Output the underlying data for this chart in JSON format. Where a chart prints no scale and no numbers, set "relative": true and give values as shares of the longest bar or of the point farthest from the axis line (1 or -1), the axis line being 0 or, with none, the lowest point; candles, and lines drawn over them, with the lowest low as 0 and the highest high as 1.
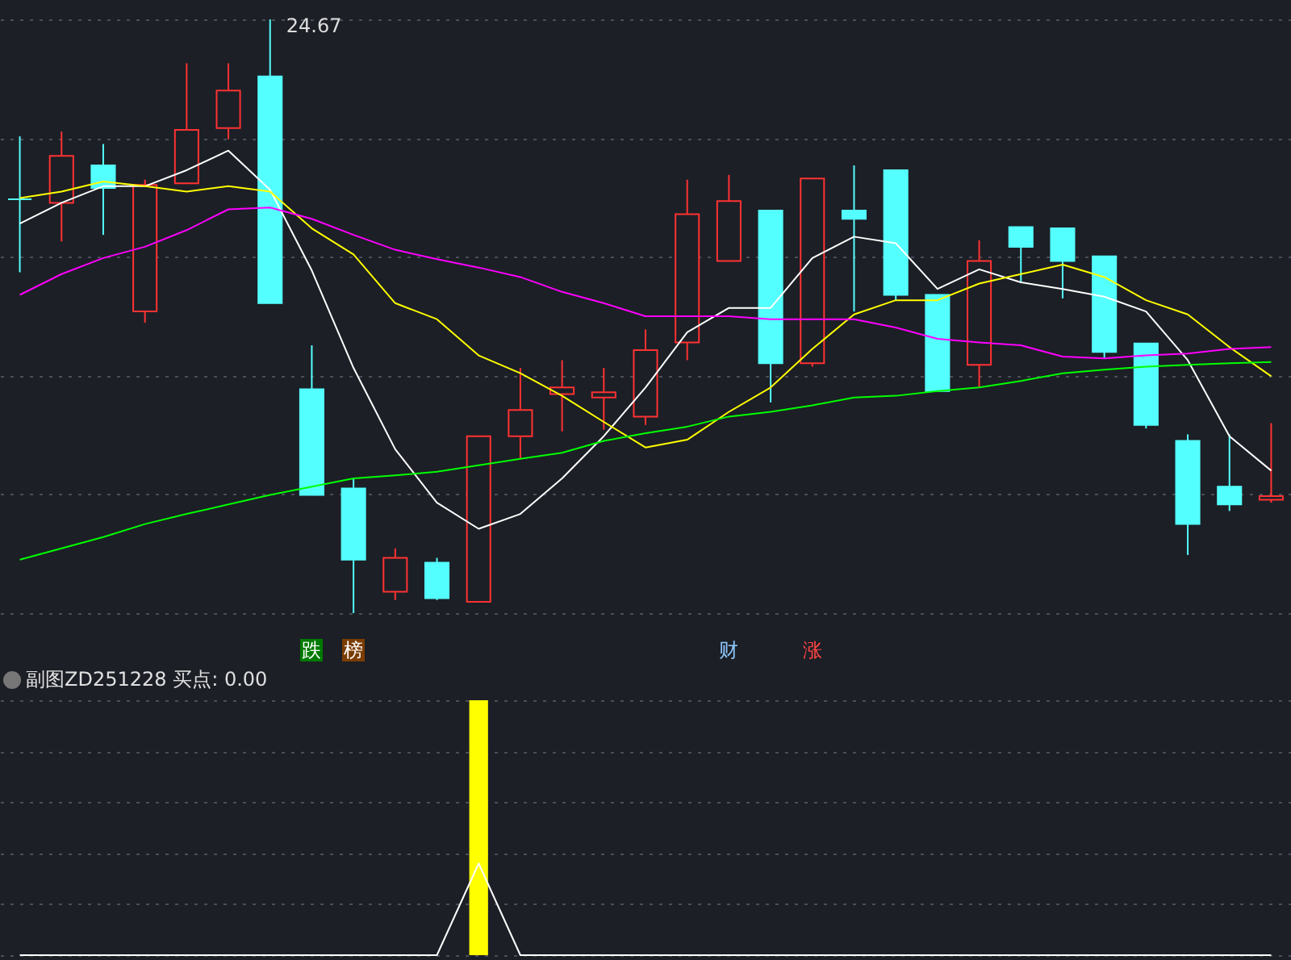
{
  "chart_data": [
    {
      "type": "candlestick",
      "relative": true,
      "grid": true,
      "categories": [
        null,
        null,
        null,
        null,
        null,
        null,
        null,
        null,
        null,
        null,
        null,
        null,
        null,
        null,
        null,
        null,
        null,
        null,
        null,
        null,
        null,
        null,
        null,
        null,
        null,
        null,
        null,
        null,
        null,
        null,
        null
      ],
      "ohlc": [
        [
          0.697,
          0.803,
          0.574,
          0.697
        ],
        [
          0.691,
          0.811,
          0.626,
          0.77
        ],
        [
          0.754,
          0.79,
          0.637,
          0.716
        ],
        [
          0.508,
          0.73,
          0.489,
          0.721
        ],
        [
          0.724,
          0.926,
          0.724,
          0.814
        ],
        [
          0.817,
          0.926,
          0.798,
          0.88
        ],
        [
          0.904,
          1.0,
          0.522,
          0.522
        ],
        [
          0.377,
          0.451,
          0.199,
          0.199
        ],
        [
          0.21,
          0.227,
          0,
          0.09
        ],
        [
          0.036,
          0.109,
          0.022,
          0.093
        ],
        [
          0.085,
          0.093,
          0.022,
          0.025
        ],
        [
          0.019,
          0.298,
          0.019,
          0.298
        ],
        [
          0.298,
          0.413,
          0.26,
          0.342
        ],
        [
          0.369,
          0.426,
          0.306,
          0.38
        ],
        [
          0.363,
          0.413,
          0.309,
          0.372
        ],
        [
          0.331,
          0.478,
          0.317,
          0.443
        ],
        [
          0.456,
          0.73,
          0.426,
          0.672
        ],
        [
          0.593,
          0.738,
          0.593,
          0.694
        ],
        [
          0.678,
          0.678,
          0.355,
          0.421
        ],
        [
          0.421,
          0.732,
          0.415,
          0.732
        ],
        [
          0.678,
          0.754,
          0.508,
          0.664
        ],
        [
          0.746,
          0.746,
          0.527,
          0.536
        ],
        [
          0.536,
          0.536,
          0.374,
          0.374
        ],
        [
          0.418,
          0.628,
          0.38,
          0.593
        ],
        [
          0.65,
          0.65,
          0.557,
          0.617
        ],
        [
          0.648,
          0.648,
          0.53,
          0.593
        ],
        [
          0.601,
          0.601,
          0.429,
          0.44
        ],
        [
          0.454,
          0.454,
          0.311,
          0.317
        ],
        [
          0.29,
          0.301,
          0.098,
          0.15
        ],
        [
          0.213,
          0.301,
          0.172,
          0.183
        ],
        [
          0.191,
          0.32,
          0.186,
          0.197
        ]
      ],
      "colors": [
        "#54ffff",
        "#ff3232",
        "#54ffff",
        "#ff3232",
        "#ff3232",
        "#ff3232",
        "#54ffff",
        "#54ffff",
        "#54ffff",
        "#ff3232",
        "#54ffff",
        "#ff3232",
        "#ff3232",
        "#ff3232",
        "#ff3232",
        "#ff3232",
        "#ff3232",
        "#ff3232",
        "#54ffff",
        "#ff3232",
        "#54ffff",
        "#54ffff",
        "#54ffff",
        "#ff3232",
        "#54ffff",
        "#54ffff",
        "#54ffff",
        "#54ffff",
        "#54ffff",
        "#54ffff",
        "#ff3232"
      ],
      "series": [
        {
          "type": "line",
          "color": "#ffffff",
          "values": [
            0.656,
            0.691,
            0.719,
            0.719,
            0.746,
            0.779,
            0.713,
            0.577,
            0.413,
            0.276,
            0.186,
            0.142,
            0.167,
            0.227,
            0.298,
            0.38,
            0.473,
            0.514,
            0.514,
            0.598,
            0.634,
            0.623,
            0.546,
            0.579,
            0.557,
            0.546,
            0.533,
            0.508,
            0.426,
            0.298,
            0.24
          ]
        },
        {
          "type": "line",
          "color": "#ffff00",
          "values": [
            0.699,
            0.71,
            0.727,
            0.719,
            0.71,
            0.719,
            0.71,
            0.648,
            0.604,
            0.522,
            0.495,
            0.434,
            0.404,
            0.366,
            0.322,
            0.279,
            0.292,
            0.339,
            0.38,
            0.445,
            0.503,
            0.527,
            0.527,
            0.555,
            0.571,
            0.587,
            0.566,
            0.527,
            0.503,
            0.448,
            0.399
          ]
        },
        {
          "type": "line",
          "color": "#ff00ff",
          "values": [
            0.536,
            0.571,
            0.598,
            0.617,
            0.645,
            0.68,
            0.683,
            0.664,
            0.637,
            0.612,
            0.596,
            0.582,
            0.566,
            0.541,
            0.522,
            0.5,
            0.5,
            0.5,
            0.495,
            0.495,
            0.495,
            0.481,
            0.462,
            0.456,
            0.451,
            0.432,
            0.429,
            0.434,
            0.437,
            0.445,
            0.448
          ]
        },
        {
          "type": "line",
          "color": "#00ff00",
          "values": [
            0.09,
            0.109,
            0.128,
            0.15,
            0.167,
            0.183,
            0.199,
            0.213,
            0.227,
            0.232,
            0.238,
            0.249,
            0.26,
            0.27,
            0.29,
            0.303,
            0.314,
            0.331,
            0.339,
            0.35,
            0.363,
            0.366,
            0.374,
            0.38,
            0.391,
            0.404,
            0.41,
            0.415,
            0.418,
            0.421,
            0.423
          ]
        }
      ],
      "annotations": [
        "24.67",
        "跌",
        "榜",
        "财",
        "涨"
      ]
    },
    {
      "type": "bar",
      "relative": true,
      "grid": true,
      "title": "副图ZD251228 买点: 0.00",
      "categories": [
        null,
        null,
        null,
        null,
        null,
        null,
        null,
        null,
        null,
        null,
        null,
        null,
        null,
        null,
        null,
        null,
        null,
        null,
        null,
        null,
        null,
        null,
        null,
        null,
        null,
        null,
        null,
        null,
        null,
        null,
        null
      ],
      "series": [
        {
          "type": "bar",
          "color": "#ffff00",
          "values": [
            null,
            null,
            null,
            null,
            null,
            null,
            null,
            null,
            null,
            null,
            null,
            1,
            null,
            null,
            null,
            null,
            null,
            null,
            null,
            null,
            null,
            null,
            null,
            null,
            null,
            null,
            null,
            null,
            null,
            null,
            null
          ]
        },
        {
          "type": "line",
          "color": "#ffffff",
          "values": [
            0,
            0,
            0,
            0,
            0,
            0,
            0,
            0,
            0,
            0,
            0,
            0.36,
            0,
            0,
            0,
            0,
            0,
            0,
            0,
            0,
            0,
            0,
            0,
            0,
            0,
            0,
            0,
            0,
            0,
            0,
            0
          ]
        }
      ]
    }
  ]
}
